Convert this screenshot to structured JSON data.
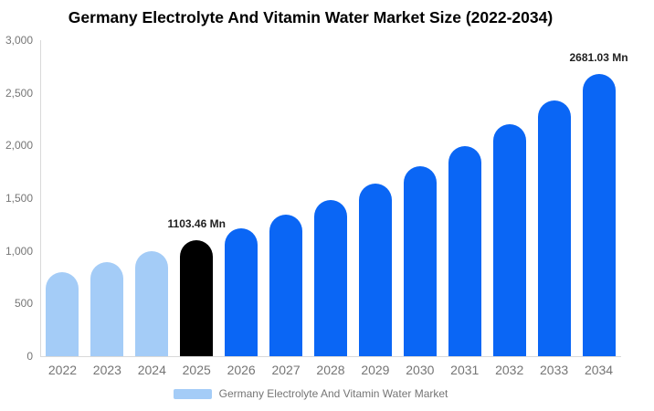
{
  "title": "Germany Electrolyte And Vitamin Water Market Size (2022-2034)",
  "colors": {
    "bar_historical": "#a4ccf7",
    "bar_highlight": "#000000",
    "bar_forecast": "#0a66f5",
    "axis_line": "#d9d9d9",
    "axis_text": "#767676",
    "annotation_text": "#1f1f1f",
    "title_text": "#000000",
    "legend_text": "#757575"
  },
  "legend": {
    "label": "Germany Electrolyte And Vitamin Water Market",
    "swatch_color": "#a4ccf7"
  },
  "chart_data": {
    "type": "bar",
    "title": "Germany Electrolyte And Vitamin Water Market Size (2022-2034)",
    "xlabel": "",
    "ylabel": "",
    "categories": [
      "2022",
      "2023",
      "2024",
      "2025",
      "2026",
      "2027",
      "2028",
      "2029",
      "2030",
      "2031",
      "2032",
      "2033",
      "2034"
    ],
    "values": [
      800,
      895,
      1000,
      1103.46,
      1218,
      1344,
      1484,
      1637,
      1807,
      1995,
      2202,
      2430,
      2681.03
    ],
    "unit": "Mn",
    "bar_colors": [
      "#a4ccf7",
      "#a4ccf7",
      "#a4ccf7",
      "#000000",
      "#0a66f5",
      "#0a66f5",
      "#0a66f5",
      "#0a66f5",
      "#0a66f5",
      "#0a66f5",
      "#0a66f5",
      "#0a66f5",
      "#0a66f5"
    ],
    "annotations": [
      {
        "category": "2025",
        "text": "1103.46 Mn"
      },
      {
        "category": "2034",
        "text": "2681.03 Mn"
      }
    ],
    "ylim": [
      0,
      3000
    ],
    "ytick_labels": [
      "0",
      "500",
      "1,000",
      "1,500",
      "2,000",
      "2,500",
      "3,000"
    ],
    "ytick_values": [
      0,
      500,
      1000,
      1500,
      2000,
      2500,
      3000
    ],
    "grid": false,
    "legend_position": "bottom",
    "legend_label": "Germany Electrolyte And Vitamin Water Market"
  }
}
